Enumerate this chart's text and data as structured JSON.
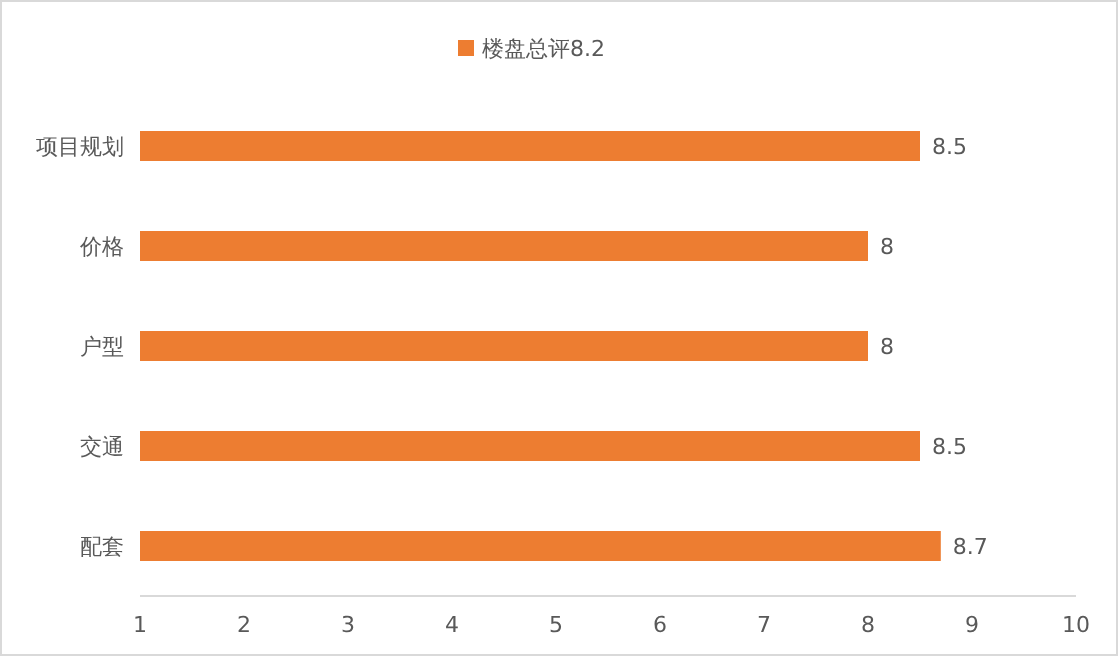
{
  "chart_data": {
    "type": "bar",
    "orientation": "horizontal",
    "categories": [
      "项目规划",
      "价格",
      "户型",
      "交通",
      "配套"
    ],
    "series": [
      {
        "name": "楼盘总评8.2",
        "color": "#ed7d31",
        "values": [
          8.5,
          8,
          8,
          8.5,
          8.7
        ]
      }
    ],
    "xlim": [
      1,
      10
    ],
    "xticks": [
      1,
      2,
      3,
      4,
      5,
      6,
      7,
      8,
      9,
      10
    ],
    "data_labels": true,
    "legend": "top",
    "grid": false
  }
}
